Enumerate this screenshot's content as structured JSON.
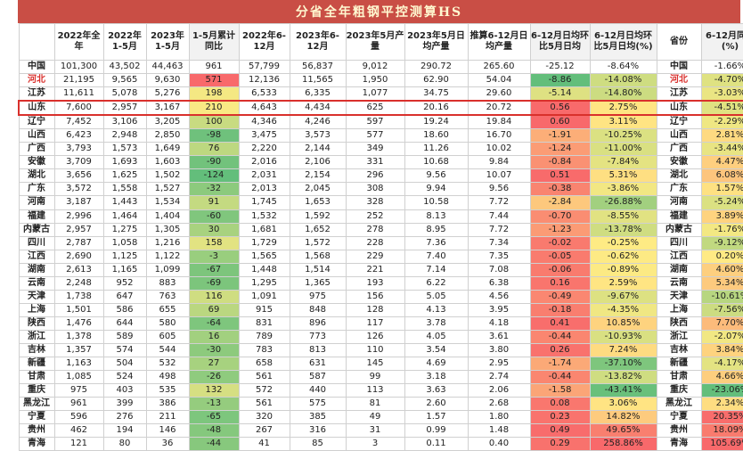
{
  "title": "分省全年粗钢平控测算HS",
  "columns": [
    "",
    "2022年全年",
    "2022年1-5月",
    "2023年1-5月",
    "1-5月累计同比",
    "2022年6-12月",
    "2023年6-12月",
    "2023年5月产量",
    "2023年5月日均产量",
    "推算6-12月日均产量",
    "6-12月日均环比5月日均",
    "6-12月日均环比5月日均(%)",
    "省份",
    "6-12月同比(%)"
  ],
  "rows": [
    {
      "prov": "中国",
      "c": [
        "101,300",
        "43,502",
        "44,463",
        "961",
        "57,799",
        "56,837",
        "9,012",
        "290.72",
        "265.60",
        "-25.12",
        "-8.64%"
      ],
      "yoy": "-1.66%",
      "n": [
        961,
        -25.12,
        -8.64,
        -1.66
      ]
    },
    {
      "prov": "河北",
      "c": [
        "21,195",
        "9,565",
        "9,630",
        "571",
        "12,136",
        "11,565",
        "1,950",
        "62.90",
        "54.04",
        "-8.86",
        "-14.08%"
      ],
      "yoy": "-4.70%",
      "n": [
        571,
        -8.86,
        -14.08,
        -4.7
      ]
    },
    {
      "prov": "江苏",
      "c": [
        "11,611",
        "5,078",
        "5,276",
        "198",
        "6,533",
        "6,335",
        "1,077",
        "34.75",
        "29.60",
        "-5.14",
        "-14.80%"
      ],
      "yoy": "-3.03%",
      "n": [
        198,
        -5.14,
        -14.8,
        -3.03
      ]
    },
    {
      "prov": "山东",
      "c": [
        "7,600",
        "2,957",
        "3,167",
        "210",
        "4,643",
        "4,434",
        "625",
        "20.16",
        "20.72",
        "0.56",
        "2.75%"
      ],
      "yoy": "-4.51%",
      "n": [
        210,
        0.56,
        2.75,
        -4.51
      ]
    },
    {
      "prov": "辽宁",
      "c": [
        "7,452",
        "3,106",
        "3,205",
        "100",
        "4,346",
        "4,246",
        "597",
        "19.24",
        "19.84",
        "0.60",
        "3.11%"
      ],
      "yoy": "-2.29%",
      "n": [
        100,
        0.6,
        3.11,
        -2.29
      ]
    },
    {
      "prov": "山西",
      "c": [
        "6,423",
        "2,948",
        "2,850",
        "-98",
        "3,475",
        "3,573",
        "577",
        "18.60",
        "16.70",
        "-1.91",
        "-10.25%"
      ],
      "yoy": "2.81%",
      "n": [
        -98,
        -1.91,
        -10.25,
        2.81
      ]
    },
    {
      "prov": "广西",
      "c": [
        "3,793",
        "1,573",
        "1,649",
        "76",
        "2,220",
        "2,144",
        "349",
        "11.26",
        "10.02",
        "-1.24",
        "-11.00%"
      ],
      "yoy": "-3.44%",
      "n": [
        76,
        -1.24,
        -11.0,
        -3.44
      ]
    },
    {
      "prov": "安徽",
      "c": [
        "3,709",
        "1,693",
        "1,603",
        "-90",
        "2,016",
        "2,106",
        "331",
        "10.68",
        "9.84",
        "-0.84",
        "-7.84%"
      ],
      "yoy": "4.47%",
      "n": [
        -90,
        -0.84,
        -7.84,
        4.47
      ]
    },
    {
      "prov": "湖北",
      "c": [
        "3,656",
        "1,625",
        "1,502",
        "-124",
        "2,031",
        "2,154",
        "296",
        "9.56",
        "10.07",
        "0.51",
        "5.31%"
      ],
      "yoy": "6.08%",
      "n": [
        -124,
        0.51,
        5.31,
        6.08
      ]
    },
    {
      "prov": "广东",
      "c": [
        "3,572",
        "1,558",
        "1,527",
        "-32",
        "2,013",
        "2,045",
        "308",
        "9.94",
        "9.56",
        "-0.38",
        "-3.86%"
      ],
      "yoy": "1.57%",
      "n": [
        -32,
        -0.38,
        -3.86,
        1.57
      ]
    },
    {
      "prov": "河南",
      "c": [
        "3,187",
        "1,443",
        "1,534",
        "91",
        "1,745",
        "1,653",
        "328",
        "10.58",
        "7.72",
        "-2.84",
        "-26.88%"
      ],
      "yoy": "-5.24%",
      "n": [
        91,
        -2.84,
        -26.88,
        -5.24
      ]
    },
    {
      "prov": "福建",
      "c": [
        "2,996",
        "1,464",
        "1,404",
        "-60",
        "1,532",
        "1,592",
        "252",
        "8.13",
        "7.44",
        "-0.70",
        "-8.55%"
      ],
      "yoy": "3.89%",
      "n": [
        -60,
        -0.7,
        -8.55,
        3.89
      ]
    },
    {
      "prov": "内蒙古",
      "c": [
        "2,957",
        "1,275",
        "1,305",
        "30",
        "1,681",
        "1,652",
        "278",
        "8.95",
        "7.72",
        "-1.23",
        "-13.78%"
      ],
      "yoy": "-1.76%",
      "n": [
        30,
        -1.23,
        -13.78,
        -1.76
      ]
    },
    {
      "prov": "四川",
      "c": [
        "2,787",
        "1,058",
        "1,216",
        "158",
        "1,729",
        "1,572",
        "228",
        "7.36",
        "7.34",
        "-0.02",
        "-0.25%"
      ],
      "yoy": "-9.12%",
      "n": [
        158,
        -0.02,
        -0.25,
        -9.12
      ]
    },
    {
      "prov": "江西",
      "c": [
        "2,690",
        "1,125",
        "1,122",
        "-3",
        "1,565",
        "1,568",
        "229",
        "7.40",
        "7.35",
        "-0.05",
        "-0.62%"
      ],
      "yoy": "0.20%",
      "n": [
        -3,
        -0.05,
        -0.62,
        0.2
      ]
    },
    {
      "prov": "湖南",
      "c": [
        "2,613",
        "1,165",
        "1,099",
        "-67",
        "1,448",
        "1,514",
        "221",
        "7.14",
        "7.08",
        "-0.06",
        "-0.89%"
      ],
      "yoy": "4.60%",
      "n": [
        -67,
        -0.06,
        -0.89,
        4.6
      ]
    },
    {
      "prov": "云南",
      "c": [
        "2,248",
        "952",
        "883",
        "-69",
        "1,295",
        "1,365",
        "193",
        "6.22",
        "6.38",
        "0.16",
        "2.59%"
      ],
      "yoy": "5.34%",
      "n": [
        -69,
        0.16,
        2.59,
        5.34
      ]
    },
    {
      "prov": "天津",
      "c": [
        "1,738",
        "647",
        "763",
        "116",
        "1,091",
        "975",
        "156",
        "5.05",
        "4.56",
        "-0.49",
        "-9.67%"
      ],
      "yoy": "-10.61%",
      "n": [
        116,
        -0.49,
        -9.67,
        -10.61
      ]
    },
    {
      "prov": "上海",
      "c": [
        "1,501",
        "586",
        "655",
        "69",
        "915",
        "848",
        "128",
        "4.13",
        "3.95",
        "-0.18",
        "-4.35%"
      ],
      "yoy": "-7.56%",
      "n": [
        69,
        -0.18,
        -4.35,
        -7.56
      ]
    },
    {
      "prov": "陕西",
      "c": [
        "1,476",
        "644",
        "580",
        "-64",
        "831",
        "896",
        "117",
        "3.78",
        "4.18",
        "0.41",
        "10.85%"
      ],
      "yoy": "7.70%",
      "n": [
        -64,
        0.41,
        10.85,
        7.7
      ]
    },
    {
      "prov": "浙江",
      "c": [
        "1,378",
        "589",
        "605",
        "16",
        "789",
        "773",
        "126",
        "4.05",
        "3.61",
        "-0.44",
        "-10.93%"
      ],
      "yoy": "-2.07%",
      "n": [
        16,
        -0.44,
        -10.93,
        -2.07
      ]
    },
    {
      "prov": "吉林",
      "c": [
        "1,357",
        "574",
        "544",
        "-30",
        "783",
        "813",
        "110",
        "3.54",
        "3.80",
        "0.26",
        "7.24%"
      ],
      "yoy": "3.84%",
      "n": [
        -30,
        0.26,
        7.24,
        3.84
      ]
    },
    {
      "prov": "新疆",
      "c": [
        "1,163",
        "504",
        "532",
        "27",
        "658",
        "631",
        "145",
        "4.69",
        "2.95",
        "-1.74",
        "-37.10%"
      ],
      "yoy": "-4.17%",
      "n": [
        27,
        -1.74,
        -37.1,
        -4.17
      ]
    },
    {
      "prov": "甘肃",
      "c": [
        "1,085",
        "524",
        "498",
        "-26",
        "561",
        "587",
        "99",
        "3.18",
        "2.74",
        "-0.44",
        "-13.82%"
      ],
      "yoy": "4.66%",
      "n": [
        -26,
        -0.44,
        -13.82,
        4.66
      ]
    },
    {
      "prov": "重庆",
      "c": [
        "975",
        "403",
        "535",
        "132",
        "572",
        "440",
        "113",
        "3.63",
        "2.06",
        "-1.58",
        "-43.41%"
      ],
      "yoy": "-23.06%",
      "n": [
        132,
        -1.58,
        -43.41,
        -23.06
      ]
    },
    {
      "prov": "黑龙江",
      "c": [
        "961",
        "399",
        "386",
        "-13",
        "561",
        "575",
        "81",
        "2.60",
        "2.68",
        "0.08",
        "3.06%"
      ],
      "yoy": "2.34%",
      "n": [
        -13,
        0.08,
        3.06,
        2.34
      ]
    },
    {
      "prov": "宁夏",
      "c": [
        "596",
        "276",
        "211",
        "-65",
        "320",
        "385",
        "49",
        "1.57",
        "1.80",
        "0.23",
        "14.82%"
      ],
      "yoy": "20.35%",
      "n": [
        -65,
        0.23,
        14.82,
        20.35
      ]
    },
    {
      "prov": "贵州",
      "c": [
        "462",
        "194",
        "146",
        "-48",
        "267",
        "316",
        "31",
        "0.99",
        "1.48",
        "0.49",
        "49.65%"
      ],
      "yoy": "18.09%",
      "n": [
        -48,
        0.49,
        49.65,
        18.09
      ]
    },
    {
      "prov": "青海",
      "c": [
        "121",
        "80",
        "36",
        "-44",
        "41",
        "85",
        "3",
        "0.11",
        "0.40",
        "0.29",
        "258.86%"
      ],
      "yoy": "105.69%",
      "n": [
        -44,
        0.29,
        258.86,
        105.69
      ]
    }
  ],
  "highlight_row": "山东",
  "red_text_provinces": [
    "河北"
  ],
  "palette": {
    "green": "#63be7b",
    "yellow": "#ffeb84",
    "red": "#f8696b",
    "highlight": "#d9302c",
    "title_bg": "#c94e45",
    "title_fg": "#fff8d0"
  },
  "chart_data": {
    "type": "table",
    "title": "分省全年粗钢平控测算HS",
    "columns": [
      "",
      "2022年全年",
      "2022年1-5月",
      "2023年1-5月",
      "1-5月累计同比",
      "2022年6-12月",
      "2023年6-12月",
      "2023年5月产量",
      "2023年5月日均产量",
      "推算6-12月日均产量",
      "6-12月日均环比5月日均",
      "6-12月日均环比5月日均(%)",
      "省份",
      "6-12月同比(%)"
    ],
    "color_scale": "green-yellow-red by column (low to high)"
  }
}
